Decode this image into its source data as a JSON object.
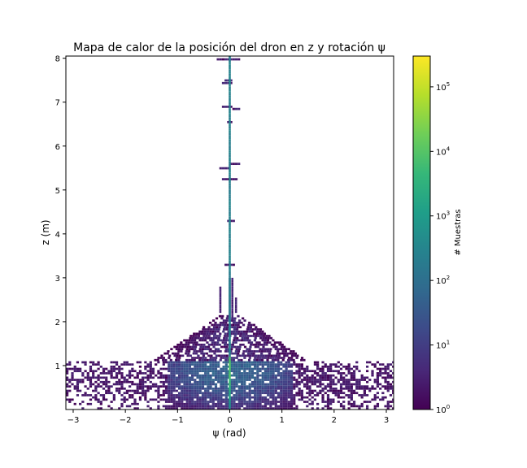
{
  "chart_data": {
    "type": "heatmap",
    "title": "Mapa de calor de la posición del dron en z y rotación ψ",
    "xlabel": "ψ (rad)",
    "ylabel": "z (m)",
    "xlim": [
      -3.14,
      3.14
    ],
    "ylim": [
      0.0,
      8.05
    ],
    "x_ticks": [
      {
        "value": -3,
        "label": "−3"
      },
      {
        "value": -2,
        "label": "−2"
      },
      {
        "value": -1,
        "label": "−1"
      },
      {
        "value": 0,
        "label": "0"
      },
      {
        "value": 1,
        "label": "1"
      },
      {
        "value": 2,
        "label": "2"
      },
      {
        "value": 3,
        "label": "3"
      }
    ],
    "y_ticks": [
      {
        "value": 1,
        "label": "1"
      },
      {
        "value": 2,
        "label": "2"
      },
      {
        "value": 3,
        "label": "3"
      },
      {
        "value": 4,
        "label": "4"
      },
      {
        "value": 5,
        "label": "5"
      },
      {
        "value": 6,
        "label": "6"
      },
      {
        "value": 7,
        "label": "7"
      },
      {
        "value": 8,
        "label": "8"
      }
    ],
    "colorbar": {
      "label": "# Muestras",
      "scale": "log",
      "range": [
        1,
        300000
      ],
      "colormap": "viridis",
      "ticks": [
        {
          "value": 1,
          "base": "10",
          "exp": "0"
        },
        {
          "value": 10,
          "base": "10",
          "exp": "1"
        },
        {
          "value": 100,
          "base": "10",
          "exp": "2"
        },
        {
          "value": 1000,
          "base": "10",
          "exp": "3"
        },
        {
          "value": 10000,
          "base": "10",
          "exp": "4"
        },
        {
          "value": 100000,
          "base": "10",
          "exp": "5"
        }
      ]
    },
    "grid": false,
    "distribution": {
      "center_line": {
        "x": 0.0,
        "z_range": [
          0.0,
          8.0
        ],
        "typical_count": 300
      },
      "hover_clusters": [
        {
          "z": 7.98,
          "x_range": [
            -0.25,
            0.2
          ]
        },
        {
          "z": 7.5,
          "x_range": [
            -0.1,
            0.05
          ]
        },
        {
          "z": 7.44,
          "x_range": [
            -0.15,
            0.05
          ]
        },
        {
          "z": 6.9,
          "x_range": [
            -0.15,
            0.05
          ]
        },
        {
          "z": 6.85,
          "x_range": [
            0.05,
            0.2
          ]
        },
        {
          "z": 6.55,
          "x_range": [
            -0.05,
            0.05
          ]
        },
        {
          "z": 5.6,
          "x_range": [
            0.0,
            0.2
          ]
        },
        {
          "z": 5.5,
          "x_range": [
            -0.2,
            -0.05
          ]
        },
        {
          "z": 5.25,
          "x_range": [
            -0.15,
            0.15
          ]
        },
        {
          "z": 4.3,
          "x_range": [
            -0.05,
            0.1
          ]
        },
        {
          "z": 3.3,
          "x_range": [
            -0.1,
            0.1
          ]
        }
      ],
      "dense_region": {
        "z_range": [
          0.0,
          1.1
        ],
        "x_range": [
          -3.14,
          3.14
        ],
        "peak_z": 0.9,
        "peak_x": 0.0
      }
    }
  }
}
